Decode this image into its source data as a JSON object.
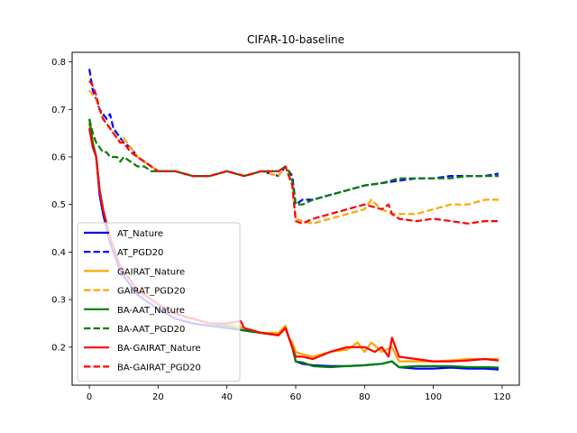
{
  "chart_data": {
    "type": "line",
    "title": "CIFAR-10-baseline",
    "xlabel": "",
    "ylabel": "",
    "xlim": [
      -5,
      125
    ],
    "ylim": [
      0.12,
      0.82
    ],
    "xticks": [
      0,
      20,
      40,
      60,
      80,
      100,
      120
    ],
    "yticks": [
      0.2,
      0.3,
      0.4,
      0.5,
      0.6,
      0.7,
      0.8
    ],
    "grid": false,
    "legend_position": "lower-left",
    "series": [
      {
        "name": "AT_Nature",
        "color": "#0000ff",
        "dash": "solid",
        "x": [
          0,
          1,
          2,
          3,
          4,
          5,
          6,
          7,
          8,
          9,
          10,
          12,
          14,
          16,
          18,
          20,
          25,
          30,
          35,
          40,
          45,
          50,
          55,
          57,
          58,
          59,
          60,
          62,
          65,
          70,
          75,
          80,
          85,
          88,
          90,
          95,
          100,
          105,
          110,
          115,
          119
        ],
        "y": [
          0.67,
          0.63,
          0.6,
          0.52,
          0.48,
          0.45,
          0.42,
          0.4,
          0.38,
          0.36,
          0.35,
          0.33,
          0.31,
          0.3,
          0.29,
          0.28,
          0.26,
          0.25,
          0.245,
          0.24,
          0.235,
          0.23,
          0.225,
          0.245,
          0.22,
          0.2,
          0.17,
          0.165,
          0.162,
          0.16,
          0.16,
          0.162,
          0.165,
          0.17,
          0.158,
          0.155,
          0.155,
          0.157,
          0.155,
          0.155,
          0.153
        ]
      },
      {
        "name": "AT_PGD20",
        "color": "#0000ff",
        "dash": "dashed",
        "x": [
          0,
          1,
          2,
          3,
          4,
          5,
          6,
          7,
          8,
          9,
          10,
          12,
          14,
          16,
          18,
          20,
          25,
          30,
          35,
          40,
          45,
          50,
          55,
          57,
          58,
          59,
          60,
          62,
          65,
          70,
          75,
          80,
          85,
          90,
          95,
          100,
          105,
          110,
          115,
          119
        ],
        "y": [
          0.785,
          0.74,
          0.72,
          0.7,
          0.69,
          0.68,
          0.69,
          0.66,
          0.65,
          0.64,
          0.63,
          0.62,
          0.6,
          0.59,
          0.58,
          0.57,
          0.57,
          0.56,
          0.56,
          0.57,
          0.56,
          0.57,
          0.56,
          0.58,
          0.57,
          0.56,
          0.5,
          0.51,
          0.51,
          0.52,
          0.53,
          0.54,
          0.545,
          0.55,
          0.555,
          0.555,
          0.56,
          0.56,
          0.56,
          0.565
        ]
      },
      {
        "name": "GAIRAT_Nature",
        "color": "#ffa500",
        "dash": "solid",
        "x": [
          0,
          1,
          2,
          3,
          4,
          5,
          6,
          7,
          8,
          9,
          10,
          12,
          14,
          16,
          18,
          20,
          25,
          30,
          35,
          40,
          45,
          50,
          55,
          57,
          58,
          59,
          60,
          62,
          65,
          70,
          75,
          78,
          80,
          82,
          85,
          88,
          90,
          95,
          100,
          105,
          110,
          115,
          119
        ],
        "y": [
          0.67,
          0.63,
          0.6,
          0.53,
          0.49,
          0.46,
          0.43,
          0.41,
          0.39,
          0.37,
          0.36,
          0.34,
          0.32,
          0.31,
          0.3,
          0.29,
          0.27,
          0.26,
          0.25,
          0.25,
          0.24,
          0.23,
          0.23,
          0.245,
          0.22,
          0.21,
          0.19,
          0.185,
          0.18,
          0.19,
          0.195,
          0.21,
          0.19,
          0.21,
          0.19,
          0.2,
          0.17,
          0.17,
          0.17,
          0.172,
          0.175,
          0.175,
          0.175
        ]
      },
      {
        "name": "GAIRAT_PGD20",
        "color": "#ffa500",
        "dash": "dashed",
        "x": [
          0,
          1,
          2,
          3,
          4,
          5,
          6,
          7,
          8,
          9,
          10,
          12,
          14,
          16,
          18,
          20,
          25,
          30,
          35,
          40,
          45,
          50,
          55,
          57,
          58,
          59,
          60,
          62,
          65,
          70,
          75,
          80,
          82,
          85,
          88,
          90,
          95,
          100,
          105,
          110,
          115,
          119
        ],
        "y": [
          0.74,
          0.73,
          0.72,
          0.7,
          0.68,
          0.67,
          0.66,
          0.65,
          0.64,
          0.63,
          0.64,
          0.62,
          0.6,
          0.59,
          0.58,
          0.57,
          0.57,
          0.56,
          0.56,
          0.57,
          0.56,
          0.57,
          0.56,
          0.58,
          0.56,
          0.55,
          0.47,
          0.465,
          0.46,
          0.47,
          0.48,
          0.49,
          0.51,
          0.49,
          0.48,
          0.48,
          0.48,
          0.49,
          0.5,
          0.5,
          0.51,
          0.51
        ]
      },
      {
        "name": "BA-AAT_Nature",
        "color": "#008000",
        "dash": "solid",
        "x": [
          0,
          1,
          2,
          3,
          4,
          5,
          6,
          7,
          8,
          9,
          10,
          12,
          14,
          16,
          18,
          20,
          25,
          30,
          35,
          40,
          45,
          50,
          55,
          57,
          58,
          59,
          60,
          62,
          65,
          70,
          75,
          80,
          85,
          88,
          90,
          95,
          100,
          105,
          110,
          115,
          119
        ],
        "y": [
          0.68,
          0.63,
          0.6,
          0.53,
          0.49,
          0.46,
          0.43,
          0.41,
          0.39,
          0.37,
          0.36,
          0.34,
          0.32,
          0.31,
          0.3,
          0.29,
          0.27,
          0.26,
          0.25,
          0.245,
          0.235,
          0.23,
          0.225,
          0.24,
          0.22,
          0.2,
          0.17,
          0.168,
          0.16,
          0.158,
          0.16,
          0.162,
          0.165,
          0.17,
          0.158,
          0.16,
          0.16,
          0.16,
          0.158,
          0.158,
          0.157
        ]
      },
      {
        "name": "BA-AAT_PGD20",
        "color": "#008000",
        "dash": "dashed",
        "x": [
          0,
          1,
          2,
          3,
          4,
          5,
          6,
          7,
          8,
          9,
          10,
          12,
          14,
          16,
          18,
          20,
          25,
          30,
          35,
          40,
          45,
          50,
          55,
          57,
          58,
          59,
          60,
          62,
          65,
          70,
          75,
          80,
          85,
          90,
          95,
          100,
          105,
          110,
          115,
          119
        ],
        "y": [
          0.68,
          0.65,
          0.63,
          0.62,
          0.61,
          0.61,
          0.6,
          0.6,
          0.6,
          0.59,
          0.6,
          0.59,
          0.58,
          0.58,
          0.57,
          0.57,
          0.57,
          0.56,
          0.56,
          0.57,
          0.56,
          0.57,
          0.57,
          0.58,
          0.57,
          0.55,
          0.5,
          0.5,
          0.51,
          0.52,
          0.53,
          0.54,
          0.545,
          0.555,
          0.555,
          0.555,
          0.555,
          0.56,
          0.56,
          0.56
        ]
      },
      {
        "name": "BA-GAIRAT_Nature",
        "color": "#ff0000",
        "dash": "solid",
        "x": [
          0,
          1,
          2,
          3,
          4,
          5,
          6,
          7,
          8,
          9,
          10,
          12,
          14,
          16,
          18,
          20,
          25,
          30,
          35,
          40,
          44,
          45,
          50,
          55,
          57,
          58,
          59,
          60,
          62,
          65,
          70,
          75,
          80,
          83,
          85,
          87,
          88,
          90,
          95,
          100,
          105,
          110,
          115,
          119
        ],
        "y": [
          0.66,
          0.62,
          0.6,
          0.53,
          0.49,
          0.46,
          0.43,
          0.41,
          0.39,
          0.37,
          0.36,
          0.34,
          0.32,
          0.31,
          0.3,
          0.29,
          0.27,
          0.26,
          0.25,
          0.25,
          0.255,
          0.24,
          0.23,
          0.225,
          0.24,
          0.22,
          0.2,
          0.18,
          0.18,
          0.175,
          0.19,
          0.2,
          0.2,
          0.19,
          0.2,
          0.18,
          0.22,
          0.18,
          0.175,
          0.17,
          0.17,
          0.172,
          0.175,
          0.172
        ]
      },
      {
        "name": "BA-GAIRAT_PGD20",
        "color": "#ff0000",
        "dash": "dashed",
        "x": [
          0,
          1,
          2,
          3,
          4,
          5,
          6,
          7,
          8,
          9,
          10,
          12,
          14,
          16,
          18,
          20,
          25,
          30,
          35,
          40,
          45,
          50,
          55,
          57,
          58,
          59,
          60,
          62,
          65,
          70,
          75,
          80,
          85,
          87,
          88,
          90,
          95,
          100,
          105,
          110,
          115,
          119
        ],
        "y": [
          0.76,
          0.75,
          0.73,
          0.7,
          0.68,
          0.67,
          0.66,
          0.65,
          0.64,
          0.63,
          0.63,
          0.61,
          0.6,
          0.59,
          0.58,
          0.57,
          0.57,
          0.56,
          0.56,
          0.57,
          0.56,
          0.57,
          0.57,
          0.58,
          0.56,
          0.54,
          0.465,
          0.46,
          0.47,
          0.48,
          0.49,
          0.5,
          0.49,
          0.5,
          0.48,
          0.47,
          0.465,
          0.47,
          0.465,
          0.46,
          0.465,
          0.465
        ]
      }
    ]
  }
}
